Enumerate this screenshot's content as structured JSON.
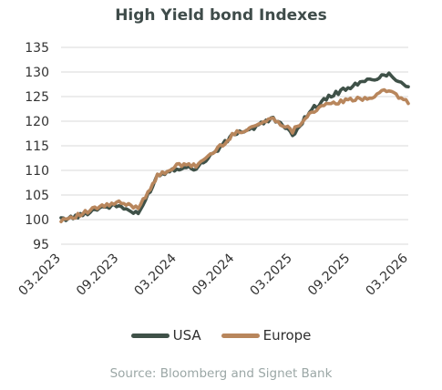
{
  "colors": {
    "usa": "#3f5148",
    "europe": "#b8865c",
    "title": "#3f4c4a",
    "source": "#9ba7a6",
    "grid": "#d9d9d9",
    "axis_text": "#333333"
  },
  "chart_data": {
    "type": "line",
    "title": "High Yield bond Indexes",
    "xlabel": "",
    "ylabel": "",
    "ylim": [
      95,
      135
    ],
    "y_ticks": [
      "95",
      "100",
      "105",
      "110",
      "115",
      "120",
      "125",
      "130",
      "135"
    ],
    "x_ticks": [
      "03.2023",
      "09.2023",
      "03.2024",
      "09.2024",
      "03.2025",
      "09.2025",
      "03.2026"
    ],
    "grid": "horizontal",
    "legend": "bottom",
    "x": [
      "03.2023",
      "05.2023",
      "07.2023",
      "09.2023",
      "11.2023",
      "01.2024",
      "03.2024",
      "05.2024",
      "07.2024",
      "09.2024",
      "11.2024",
      "01.2025",
      "03.2025",
      "05.2025",
      "07.2025",
      "09.2025",
      "11.2025",
      "01.2026",
      "03.2026"
    ],
    "series": [
      {
        "name": "USA",
        "values": [
          100.0,
          100.8,
          102.5,
          102.8,
          101.0,
          109.0,
          110.5,
          110.5,
          113.8,
          117.5,
          118.6,
          120.7,
          117.2,
          122.5,
          125.2,
          127.0,
          128.4,
          129.6,
          127.0
        ]
      },
      {
        "name": "Europe",
        "values": [
          100.0,
          101.0,
          102.6,
          103.4,
          102.5,
          108.8,
          111.0,
          111.0,
          114.0,
          117.5,
          119.0,
          120.6,
          118.0,
          122.0,
          123.6,
          124.3,
          124.8,
          126.4,
          123.6
        ]
      }
    ]
  },
  "legend": {
    "usa_label": "USA",
    "europe_label": "Europe"
  },
  "source": "Source: Bloomberg and Signet Bank"
}
